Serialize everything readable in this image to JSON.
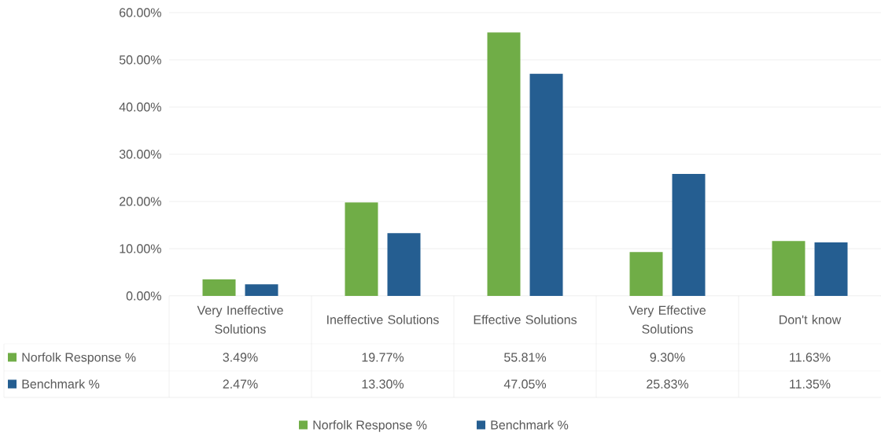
{
  "chart_data": {
    "type": "bar",
    "categories": [
      "Very Ineffective Solutions",
      "Ineffective Solutions",
      "Effective Solutions",
      "Very Effective Solutions",
      "Don't know"
    ],
    "series": [
      {
        "name": "Norfolk Response %",
        "color": "#70ad47",
        "values": [
          3.49,
          19.77,
          55.81,
          9.3,
          11.63
        ],
        "value_labels": [
          "3.49%",
          "19.77%",
          "55.81%",
          "9.30%",
          "11.63%"
        ]
      },
      {
        "name": "Benchmark %",
        "color": "#255e91",
        "values": [
          2.47,
          13.3,
          47.05,
          25.83,
          11.35
        ],
        "value_labels": [
          "2.47%",
          "13.30%",
          "47.05%",
          "25.83%",
          "11.35%"
        ]
      }
    ],
    "ylim": [
      0,
      60
    ],
    "yticks": [
      {
        "value": 0,
        "label": "0.00%"
      },
      {
        "value": 10,
        "label": "10.00%"
      },
      {
        "value": 20,
        "label": "20.00%"
      },
      {
        "value": 30,
        "label": "30.00%"
      },
      {
        "value": 40,
        "label": "40.00%"
      },
      {
        "value": 50,
        "label": "50.00%"
      },
      {
        "value": 60,
        "label": "60.00%"
      }
    ],
    "grid": "y",
    "legend": "bottom"
  }
}
